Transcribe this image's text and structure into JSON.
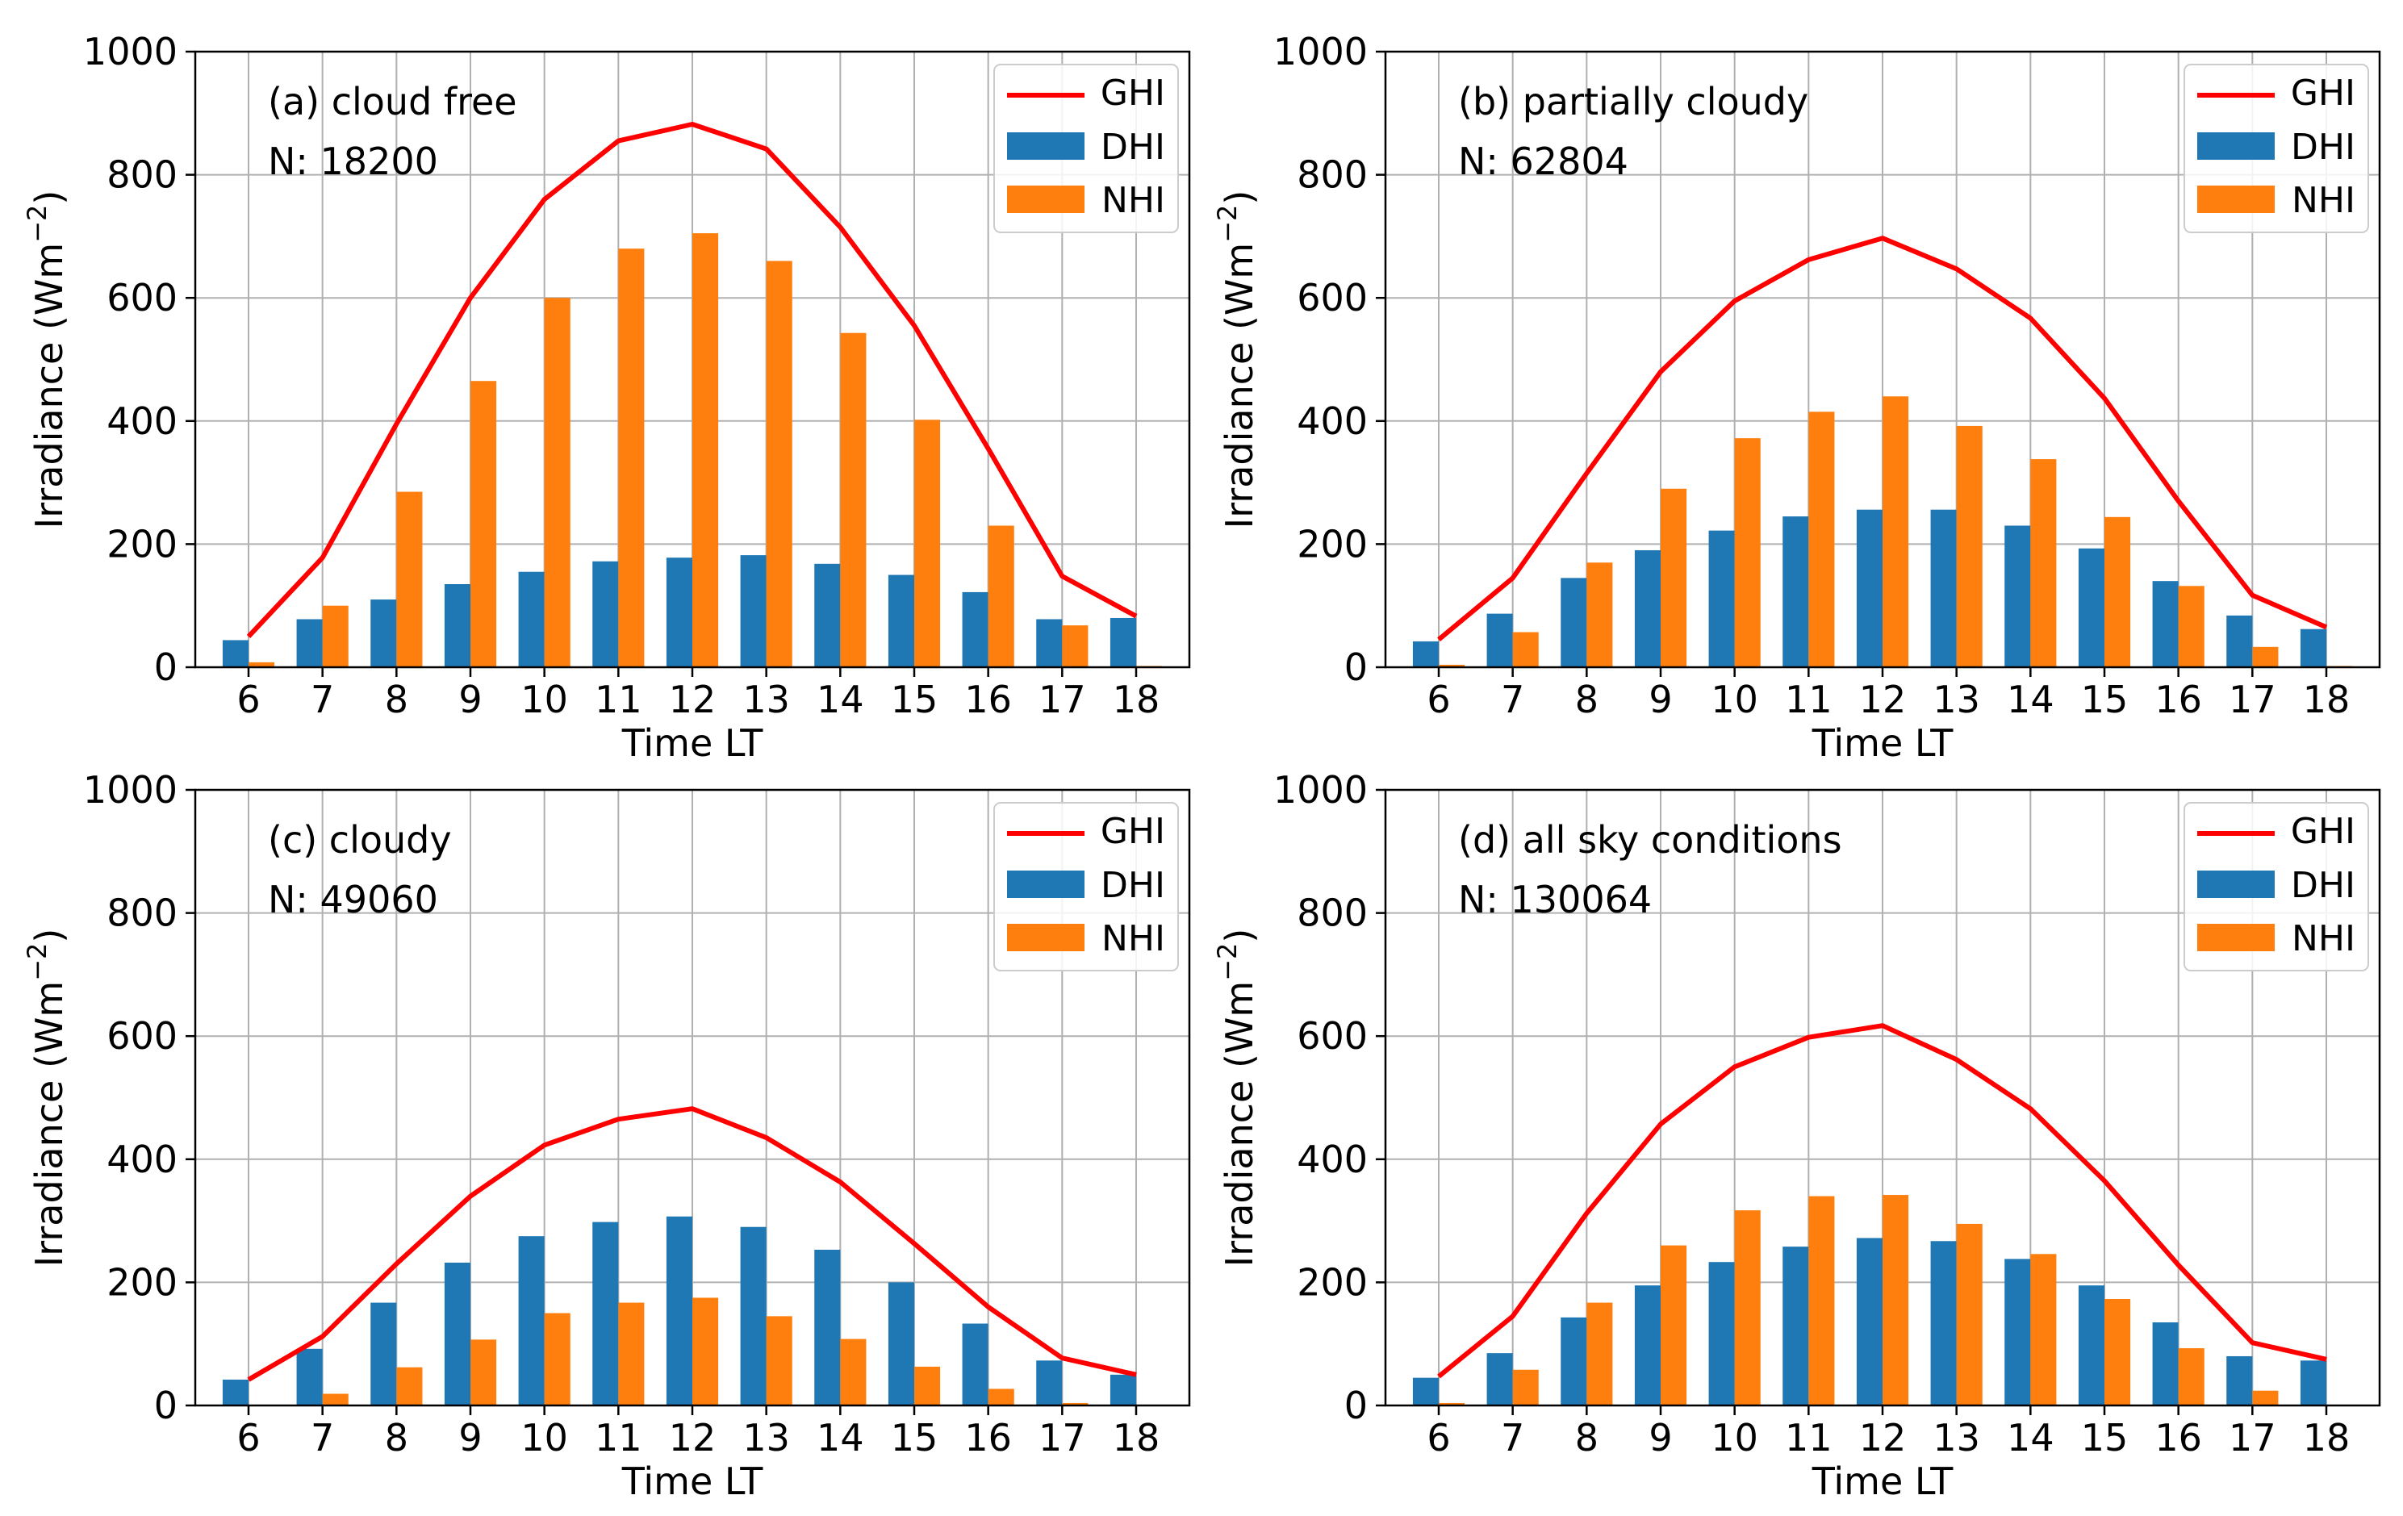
{
  "colors": {
    "ghi": "#ff0000",
    "dhi": "#1f77b4",
    "nhi": "#ff7f0e",
    "grid": "#b0b0b0"
  },
  "chart_data": [
    {
      "type": "bar",
      "panel": "a",
      "annotation": "(a) cloud free",
      "n_label": "N: 18200",
      "xlabel": "Time LT",
      "ylabel": "Irradiance (Wm",
      "ylabel_exponent": "−2",
      "ylabel_close": ")",
      "ylim": [
        0,
        1000
      ],
      "yticks": [
        "0",
        "200",
        "400",
        "600",
        "800",
        "1000"
      ],
      "categories": [
        "6",
        "7",
        "8",
        "9",
        "10",
        "11",
        "12",
        "13",
        "14",
        "15",
        "16",
        "17",
        "18"
      ],
      "legend": [
        "GHI",
        "DHI",
        "NHI"
      ],
      "legend_position": "top-right",
      "grid": true,
      "series": [
        {
          "name": "GHI",
          "kind": "line",
          "values": [
            50,
            178,
            395,
            600,
            760,
            855,
            882,
            842,
            715,
            555,
            355,
            148,
            83
          ]
        },
        {
          "name": "DHI",
          "kind": "bar",
          "values": [
            44,
            78,
            110,
            135,
            155,
            172,
            178,
            182,
            168,
            150,
            122,
            78,
            80
          ]
        },
        {
          "name": "NHI",
          "kind": "bar",
          "values": [
            8,
            100,
            285,
            465,
            600,
            680,
            705,
            660,
            543,
            402,
            230,
            68,
            2
          ]
        }
      ]
    },
    {
      "type": "bar",
      "panel": "b",
      "annotation": "(b) partially cloudy",
      "n_label": "N: 62804",
      "xlabel": "Time LT",
      "ylabel": "Irradiance (Wm",
      "ylabel_exponent": "−2",
      "ylabel_close": ")",
      "ylim": [
        0,
        1000
      ],
      "yticks": [
        "0",
        "200",
        "400",
        "600",
        "800",
        "1000"
      ],
      "categories": [
        "6",
        "7",
        "8",
        "9",
        "10",
        "11",
        "12",
        "13",
        "14",
        "15",
        "16",
        "17",
        "18"
      ],
      "legend": [
        "GHI",
        "DHI",
        "NHI"
      ],
      "legend_position": "top-right",
      "grid": true,
      "series": [
        {
          "name": "GHI",
          "kind": "line",
          "values": [
            45,
            145,
            315,
            480,
            595,
            662,
            697,
            647,
            567,
            437,
            270,
            117,
            65
          ]
        },
        {
          "name": "DHI",
          "kind": "bar",
          "values": [
            42,
            87,
            145,
            190,
            222,
            245,
            256,
            256,
            230,
            193,
            140,
            84,
            62
          ]
        },
        {
          "name": "NHI",
          "kind": "bar",
          "values": [
            4,
            57,
            170,
            290,
            372,
            415,
            440,
            392,
            338,
            244,
            132,
            33,
            2
          ]
        }
      ]
    },
    {
      "type": "bar",
      "panel": "c",
      "annotation": "(c) cloudy",
      "n_label": "N: 49060",
      "xlabel": "Time LT",
      "ylabel": "Irradiance (Wm",
      "ylabel_exponent": "−2",
      "ylabel_close": ")",
      "ylim": [
        0,
        1000
      ],
      "yticks": [
        "0",
        "200",
        "400",
        "600",
        "800",
        "1000"
      ],
      "categories": [
        "6",
        "7",
        "8",
        "9",
        "10",
        "11",
        "12",
        "13",
        "14",
        "15",
        "16",
        "17",
        "18"
      ],
      "legend": [
        "GHI",
        "DHI",
        "NHI"
      ],
      "legend_position": "top-right",
      "grid": true,
      "series": [
        {
          "name": "GHI",
          "kind": "line",
          "values": [
            42,
            112,
            230,
            340,
            423,
            465,
            482,
            435,
            363,
            263,
            160,
            77,
            50
          ]
        },
        {
          "name": "DHI",
          "kind": "bar",
          "values": [
            42,
            92,
            167,
            232,
            275,
            298,
            307,
            290,
            253,
            200,
            133,
            73,
            50
          ]
        },
        {
          "name": "NHI",
          "kind": "bar",
          "values": [
            1,
            19,
            62,
            107,
            150,
            167,
            175,
            145,
            108,
            63,
            27,
            4,
            0
          ]
        }
      ]
    },
    {
      "type": "bar",
      "panel": "d",
      "annotation": "(d) all sky conditions",
      "n_label": "N: 130064",
      "xlabel": "Time LT",
      "ylabel": "Irradiance (Wm",
      "ylabel_exponent": "−2",
      "ylabel_close": ")",
      "ylim": [
        0,
        1000
      ],
      "yticks": [
        "0",
        "200",
        "400",
        "600",
        "800",
        "1000"
      ],
      "categories": [
        "6",
        "7",
        "8",
        "9",
        "10",
        "11",
        "12",
        "13",
        "14",
        "15",
        "16",
        "17",
        "18"
      ],
      "legend": [
        "GHI",
        "DHI",
        "NHI"
      ],
      "legend_position": "top-right",
      "grid": true,
      "series": [
        {
          "name": "GHI",
          "kind": "line",
          "values": [
            47,
            145,
            312,
            457,
            550,
            598,
            617,
            562,
            482,
            365,
            228,
            102,
            75
          ]
        },
        {
          "name": "DHI",
          "kind": "bar",
          "values": [
            45,
            85,
            143,
            195,
            233,
            258,
            272,
            267,
            238,
            195,
            135,
            80,
            73
          ]
        },
        {
          "name": "NHI",
          "kind": "bar",
          "values": [
            4,
            58,
            167,
            260,
            317,
            340,
            342,
            295,
            246,
            173,
            93,
            24,
            1
          ]
        }
      ]
    }
  ]
}
